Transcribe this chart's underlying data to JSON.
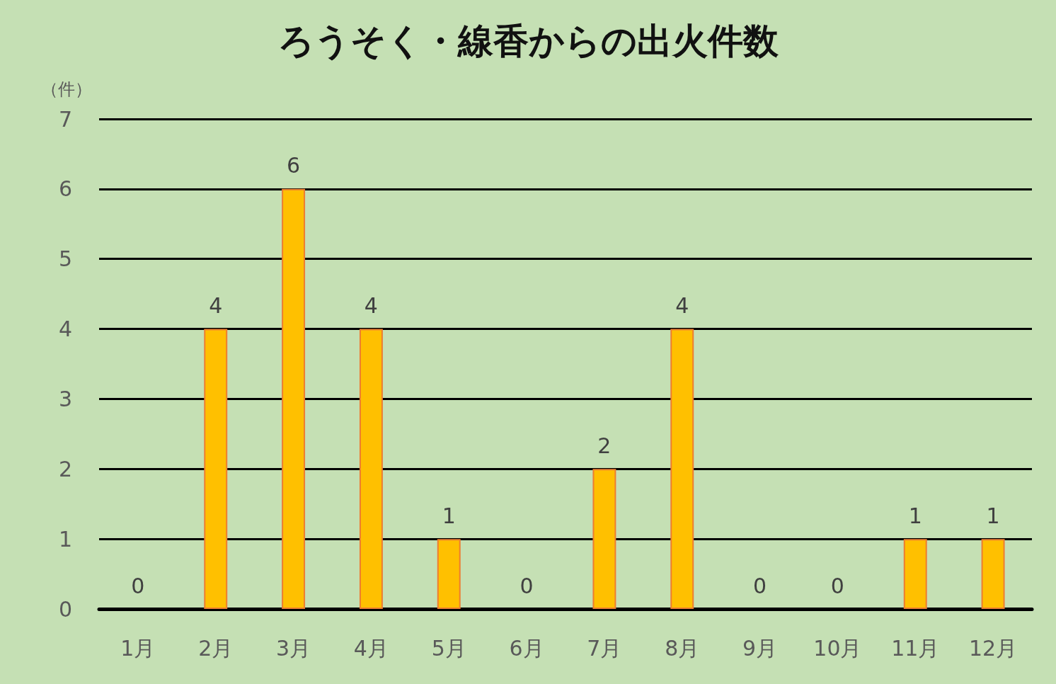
{
  "chart_data": {
    "type": "bar",
    "title": "ろうそく・線香からの出火件数",
    "ylabel": "（件）",
    "categories": [
      "1月",
      "2月",
      "3月",
      "4月",
      "5月",
      "6月",
      "7月",
      "8月",
      "9月",
      "10月",
      "11月",
      "12月"
    ],
    "values": [
      0,
      4,
      6,
      4,
      1,
      0,
      2,
      4,
      0,
      0,
      1,
      1
    ],
    "color": "#ffc000",
    "ylim": [
      0,
      7
    ],
    "yticks": [
      0,
      1,
      2,
      3,
      4,
      5,
      6,
      7
    ],
    "grid": "y",
    "data_labels": true
  }
}
